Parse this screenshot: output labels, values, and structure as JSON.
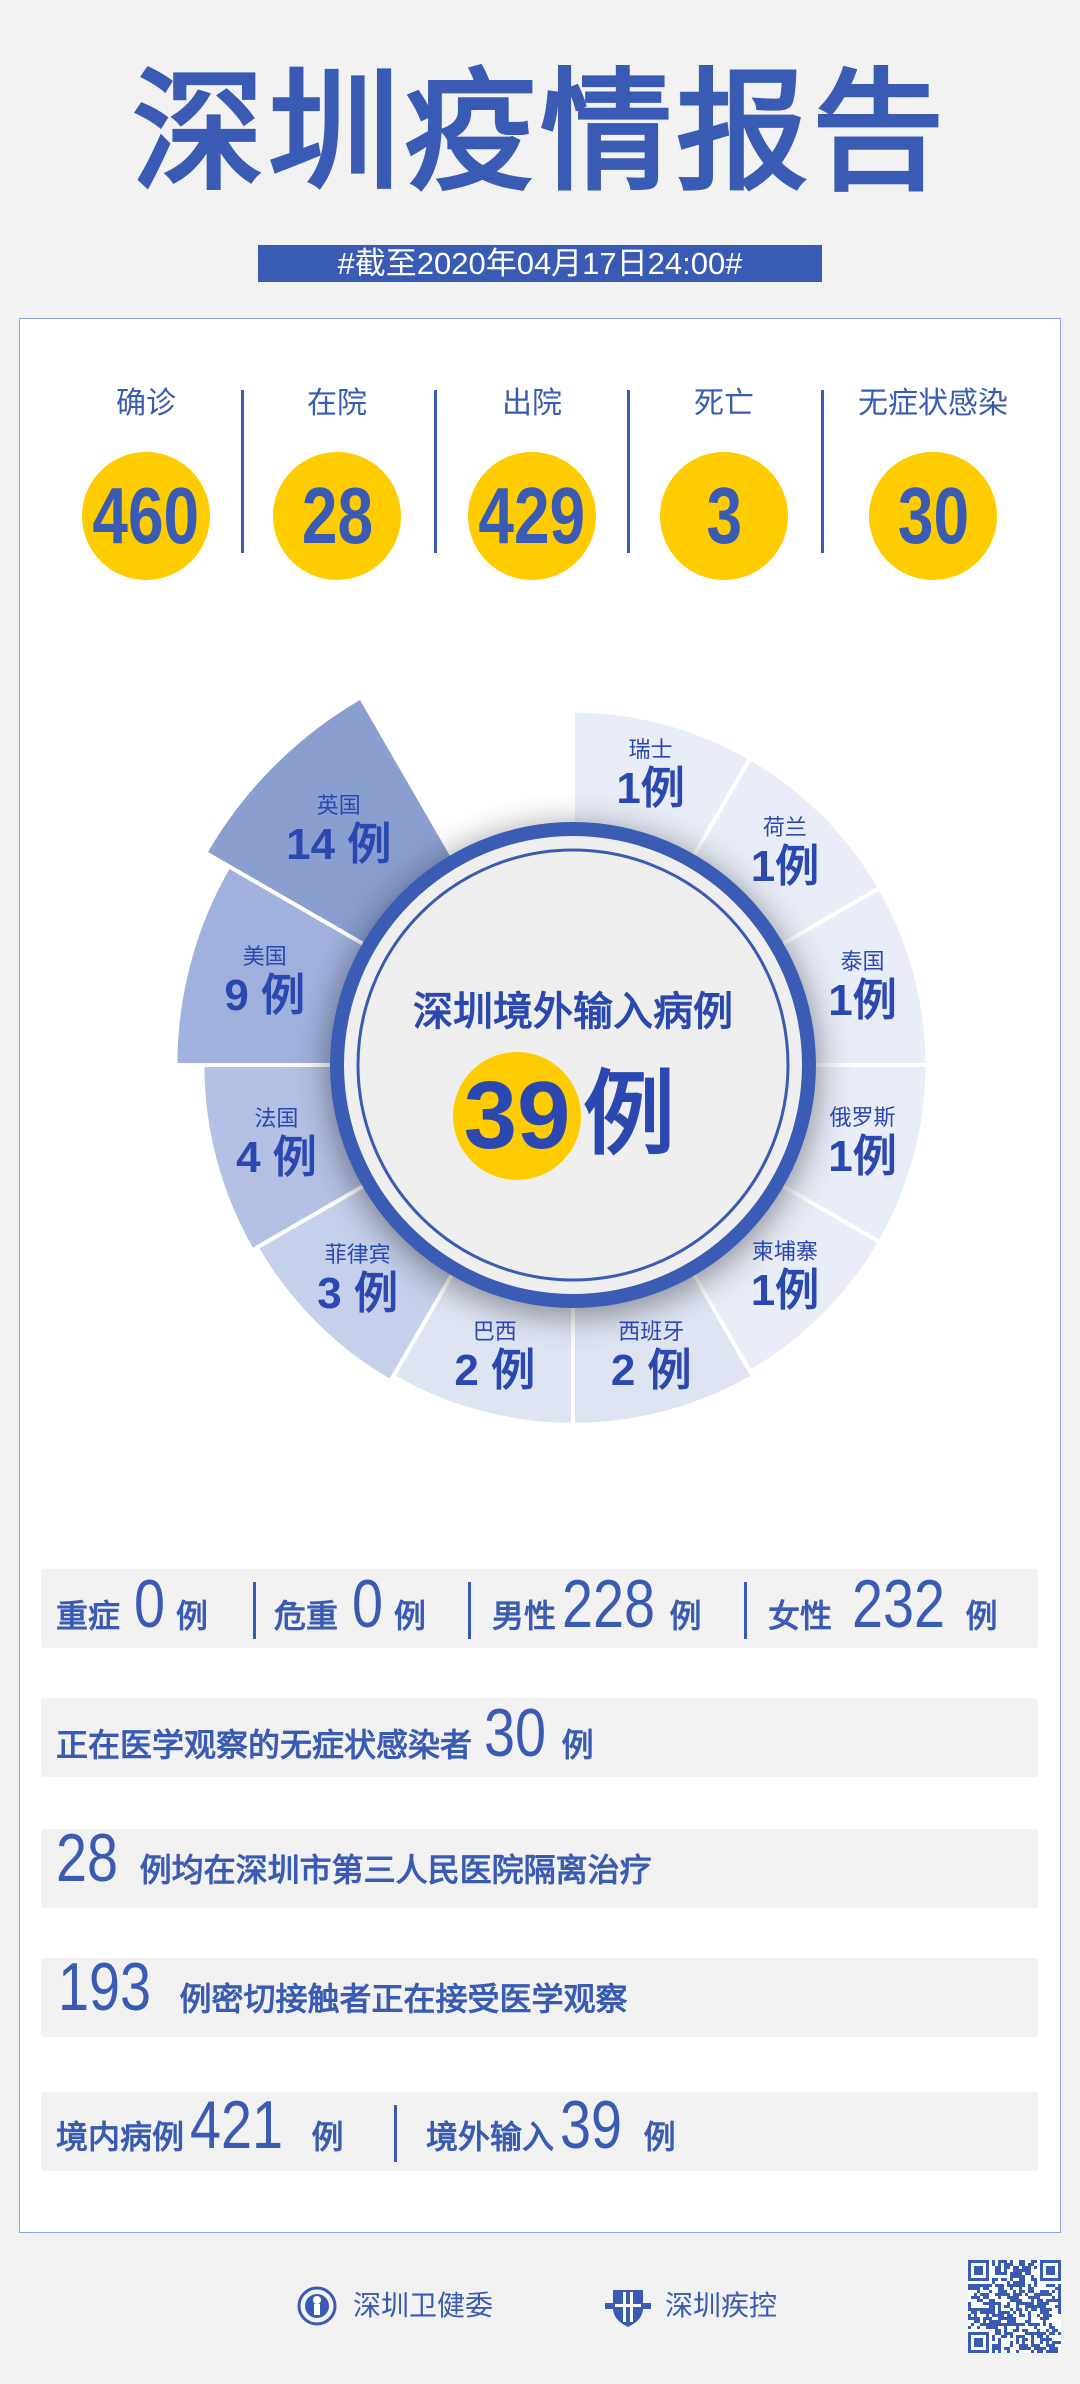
{
  "title": "深圳疫情报告",
  "date_banner": "#截至2020年04月17日24:00#",
  "colors": {
    "primary": "#3a5bb4",
    "accent_yellow": "#ffcc00",
    "background": "#f2f2f2"
  },
  "stats": [
    {
      "label": "确诊",
      "value": "460"
    },
    {
      "label": "在院",
      "value": "28"
    },
    {
      "label": "出院",
      "value": "429"
    },
    {
      "label": "死亡",
      "value": "3"
    },
    {
      "label": "无症状感染",
      "value": "30"
    }
  ],
  "chart_data": {
    "type": "pie",
    "variant": "rose",
    "title": "深圳境外输入病例",
    "total": "39",
    "unit": "例",
    "categories": [
      "瑞士",
      "荷兰",
      "泰国",
      "俄罗斯",
      "柬埔寨",
      "西班牙",
      "巴西",
      "菲律宾",
      "法国",
      "美国",
      "英国"
    ],
    "values": [
      1,
      1,
      1,
      1,
      1,
      2,
      2,
      3,
      4,
      9,
      14
    ],
    "colors": [
      "#e9edf8",
      "#e9edf8",
      "#e9edf8",
      "#e9edf8",
      "#e9edf8",
      "#dfe4f3",
      "#dfe4f3",
      "#c6d0eb",
      "#b5c1e4",
      "#a1b1dd",
      "#8a9fd0"
    ]
  },
  "details": {
    "row1": [
      {
        "label": "重症",
        "value": "0",
        "unit": "例"
      },
      {
        "label": "危重",
        "value": "0",
        "unit": "例"
      },
      {
        "label": "男性",
        "value": "228",
        "unit": "例"
      },
      {
        "label": "女性",
        "value": "232",
        "unit": "例"
      }
    ],
    "row2": {
      "label": "正在医学观察的无症状感染者",
      "value": "30",
      "unit": "例"
    },
    "row3": {
      "value": "28",
      "text": "例均在深圳市第三人民医院隔离治疗"
    },
    "row4": {
      "value": "193",
      "text": "例密切接触者正在接受医学观察"
    },
    "row5": [
      {
        "label": "境内病例",
        "value": "421",
        "unit": "例"
      },
      {
        "label": "境外输入",
        "value": "39",
        "unit": "例"
      }
    ]
  },
  "footer": {
    "org1": "深圳卫健委",
    "org2": "深圳疾控"
  }
}
